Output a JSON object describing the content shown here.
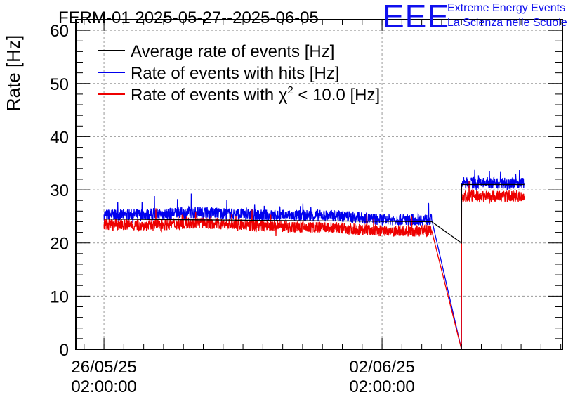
{
  "logo": {
    "mark": "EEE",
    "line1": "Extreme Energy Events",
    "line2": "La Scienza nelle Scuole"
  },
  "chart_data": {
    "type": "line",
    "title": "FERM-01 2025-05-27--2025-06-05",
    "ylabel": "Rate [Hz]",
    "xlabel": "",
    "ylim": [
      0,
      62
    ],
    "yticks": [
      0,
      10,
      20,
      30,
      40,
      50,
      60
    ],
    "xlim": [
      "2025-05-25 09:00",
      "2025-06-06 15:00"
    ],
    "xticks": [
      {
        "x": "2025-05-26 02:00",
        "line1": "26/05/25",
        "line2": "02:00:00"
      },
      {
        "x": "2025-06-02 02:00",
        "line1": "02/06/25",
        "line2": "02:00:00"
      }
    ],
    "grid": true,
    "legend_position": "top-left",
    "series": [
      {
        "name": "Average rate of events [Hz]",
        "color": "#000000",
        "noise": 0,
        "x": [
          "2025-05-26 02:00",
          "2025-06-03 08:00",
          "2025-06-04 02:00",
          "2025-06-04 02:05",
          "2025-06-05 16:00"
        ],
        "y": [
          24.5,
          24.0,
          20.0,
          31.0,
          31.0
        ]
      },
      {
        "name": "Rate of events with hits [Hz]",
        "color": "#0000ee",
        "noise": 1.1,
        "x": [
          "2025-05-26 02:00",
          "2025-05-27 02:00",
          "2025-05-28 12:00",
          "2025-05-30 00:00",
          "2025-06-01 00:00",
          "2025-06-02 00:00",
          "2025-06-03 08:00",
          "2025-06-04 02:00",
          "2025-06-04 02:05",
          "2025-06-05 16:00"
        ],
        "y": [
          25.3,
          25.3,
          25.8,
          25.2,
          25.1,
          24.4,
          24.4,
          0,
          31.3,
          31.3
        ],
        "gap_after": [
          6,
          7
        ]
      },
      {
        "name": "Rate of events with χ² < 10.0 [Hz]",
        "legend_prefix": "Rate of events with ",
        "legend_chi": "χ",
        "legend_sup": "2",
        "legend_suffix": " < 10.0 [Hz]",
        "color": "#ee0000",
        "noise": 1.1,
        "x": [
          "2025-05-26 02:00",
          "2025-05-27 02:00",
          "2025-05-28 12:00",
          "2025-05-30 00:00",
          "2025-06-01 00:00",
          "2025-06-02 00:00",
          "2025-06-03 08:00",
          "2025-06-04 02:00",
          "2025-06-04 02:05",
          "2025-06-05 16:00"
        ],
        "y": [
          23.5,
          23.3,
          23.8,
          23.2,
          22.8,
          22.3,
          22.3,
          0,
          28.8,
          28.8
        ],
        "gap_after": [
          6,
          7
        ]
      }
    ]
  }
}
